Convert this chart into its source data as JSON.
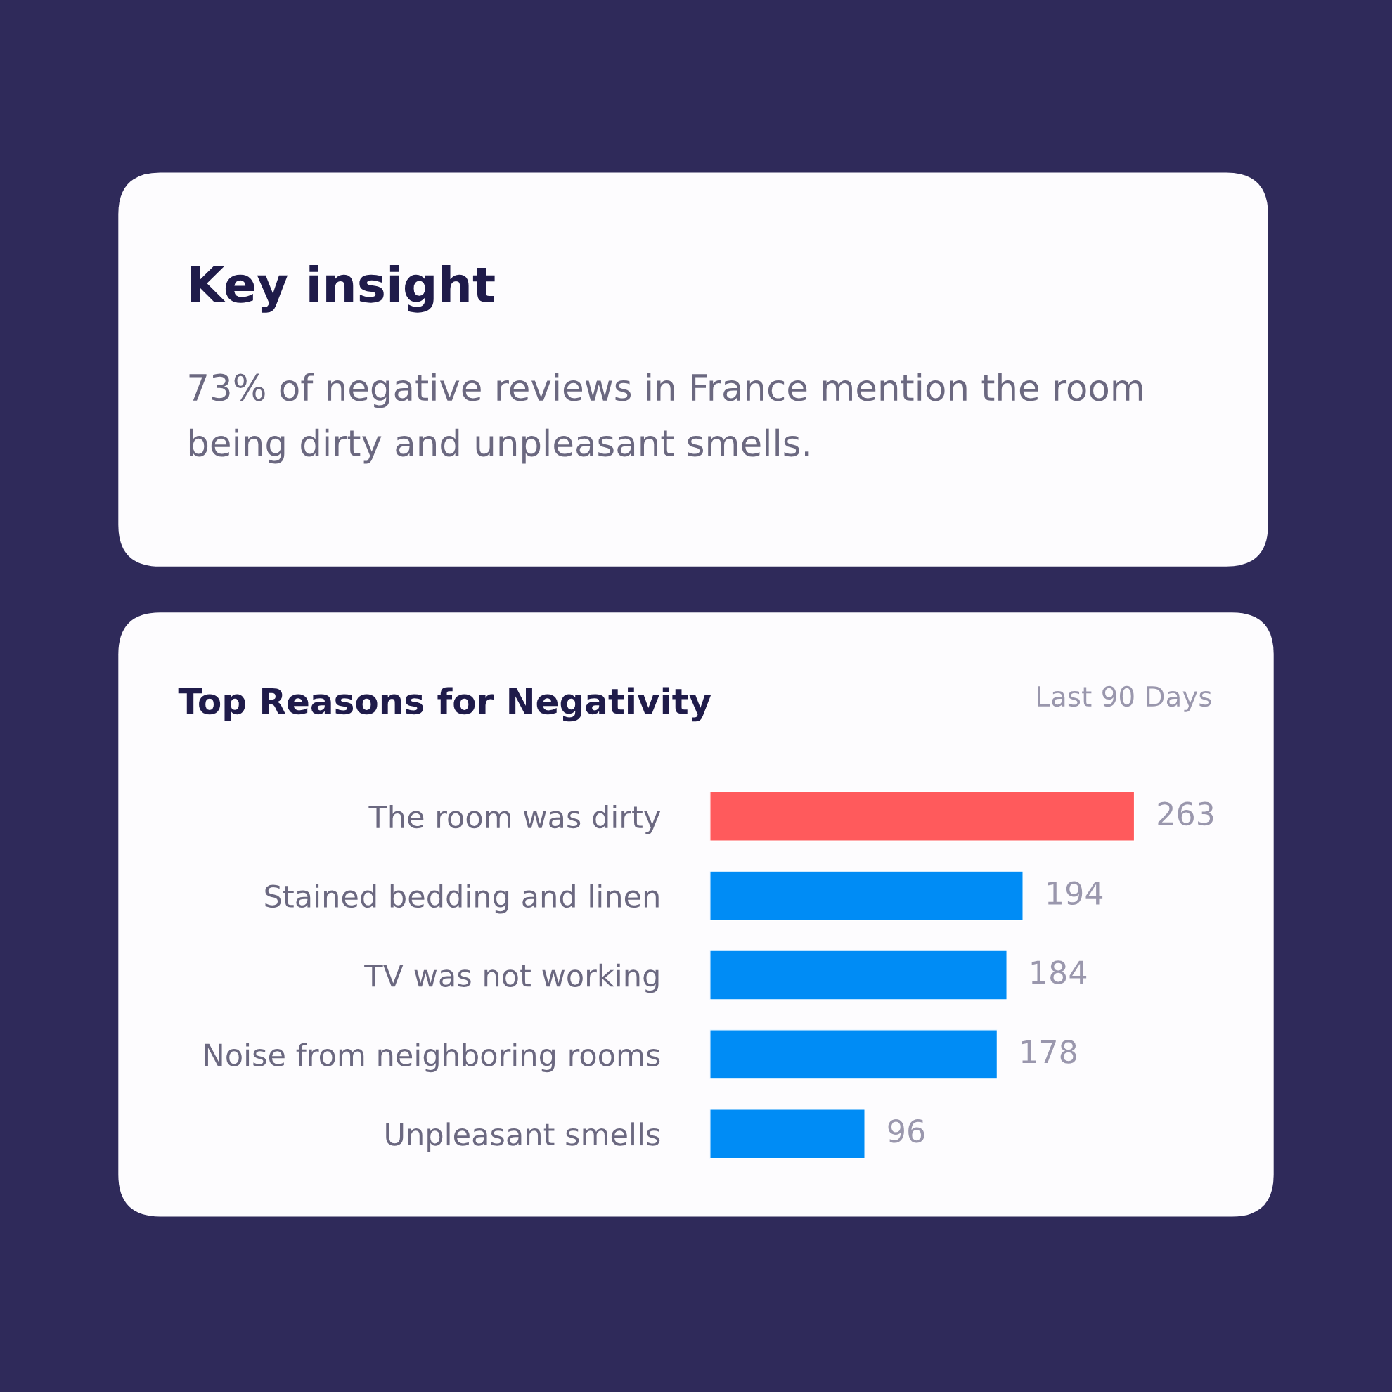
{
  "chart_data": [
    {
      "type": "other",
      "title": "Key insight",
      "annotations": [
        "73% of negative reviews in France mention the room being dirty and unpleasant smells."
      ]
    },
    {
      "type": "bar",
      "orientation": "horizontal",
      "data_labels": true,
      "title": "Top Reasons for Negativity",
      "subtitle": "Last 90 Days",
      "categories": [
        "The room was dirty",
        "Stained bedding and linen",
        "TV was not working",
        "Noise from neighboring rooms",
        "Unpleasant smells"
      ],
      "values": [
        263,
        194,
        184,
        178,
        96
      ],
      "colors": [
        "#ff5a5c",
        "#008cf5",
        "#008cf5",
        "#008cf5",
        "#008cf5"
      ]
    }
  ]
}
